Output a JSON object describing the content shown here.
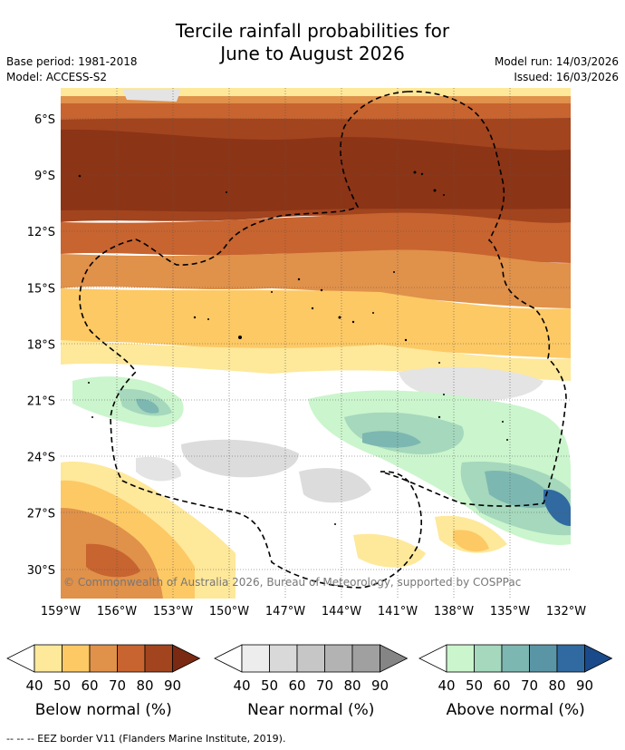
{
  "title_line1": "Tercile rainfall probabilities for",
  "title_line2": "June to August 2026",
  "base_period": "Base period: 1981-2018",
  "model": "Model: ACCESS-S2",
  "model_run": "Model run: 14/03/2026",
  "issued": "Issued: 16/03/2026",
  "lat_labels": [
    "6°S",
    "9°S",
    "12°S",
    "15°S",
    "18°S",
    "21°S",
    "24°S",
    "27°S",
    "30°S"
  ],
  "lon_labels": [
    "159°W",
    "156°W",
    "153°W",
    "150°W",
    "147°W",
    "144°W",
    "141°W",
    "138°W",
    "135°W",
    "132°W"
  ],
  "copyright": "© Commonwealth of Australia 2026, Bureau of Meteorology, supported by COSPPac",
  "colorbars": [
    {
      "label": "Below normal (%)",
      "ticks": [
        "40",
        "50",
        "60",
        "70",
        "80",
        "90"
      ],
      "colors": [
        "#ffffff",
        "#fee89a",
        "#fdc965",
        "#e0914a",
        "#c8642f",
        "#a2441e",
        "#7a2a12"
      ]
    },
    {
      "label": "Near normal (%)",
      "ticks": [
        "40",
        "50",
        "60",
        "70",
        "80",
        "90"
      ],
      "colors": [
        "#ffffff",
        "#ededed",
        "#d9d9d9",
        "#c6c6c6",
        "#b3b3b3",
        "#a0a0a0",
        "#858585"
      ]
    },
    {
      "label": "Above normal (%)",
      "ticks": [
        "40",
        "50",
        "60",
        "70",
        "80",
        "90"
      ],
      "colors": [
        "#ffffff",
        "#cbf5cd",
        "#a5d8bc",
        "#7db7b1",
        "#5a95a6",
        "#316aa0",
        "#1a4a8a"
      ]
    }
  ],
  "footnote": "--  --  -- EEZ border V11 (Flanders Marine Institute, 2019)."
}
